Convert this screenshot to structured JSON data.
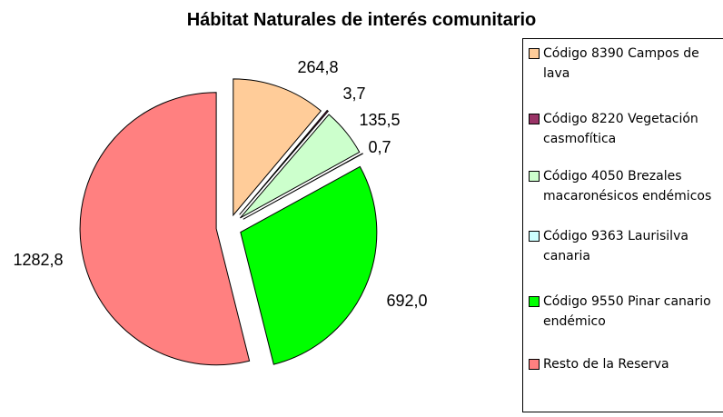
{
  "chart_data": {
    "type": "pie",
    "title": "Hábitat Naturales de interés comunitario",
    "categories": [
      "Código 8390 Campos de lava",
      "Código 8220 Vegetación casmofítica",
      "Código 4050 Brezales macaronésicos endémicos",
      "Código 9363 Laurisilva canaria",
      "Código 9550 Pinar canario endémico",
      "Resto de la Reserva"
    ],
    "values": [
      264.8,
      3.7,
      135.5,
      0.7,
      692.0,
      1282.8
    ],
    "value_labels": [
      "264,8",
      "3,7",
      "135,5",
      "0,7",
      "692,0",
      "1282,8"
    ],
    "colors": [
      "#FFCC99",
      "#993366",
      "#CCFFCC",
      "#CCFFFF",
      "#00FF00",
      "#FF8080"
    ],
    "legend": "right"
  }
}
